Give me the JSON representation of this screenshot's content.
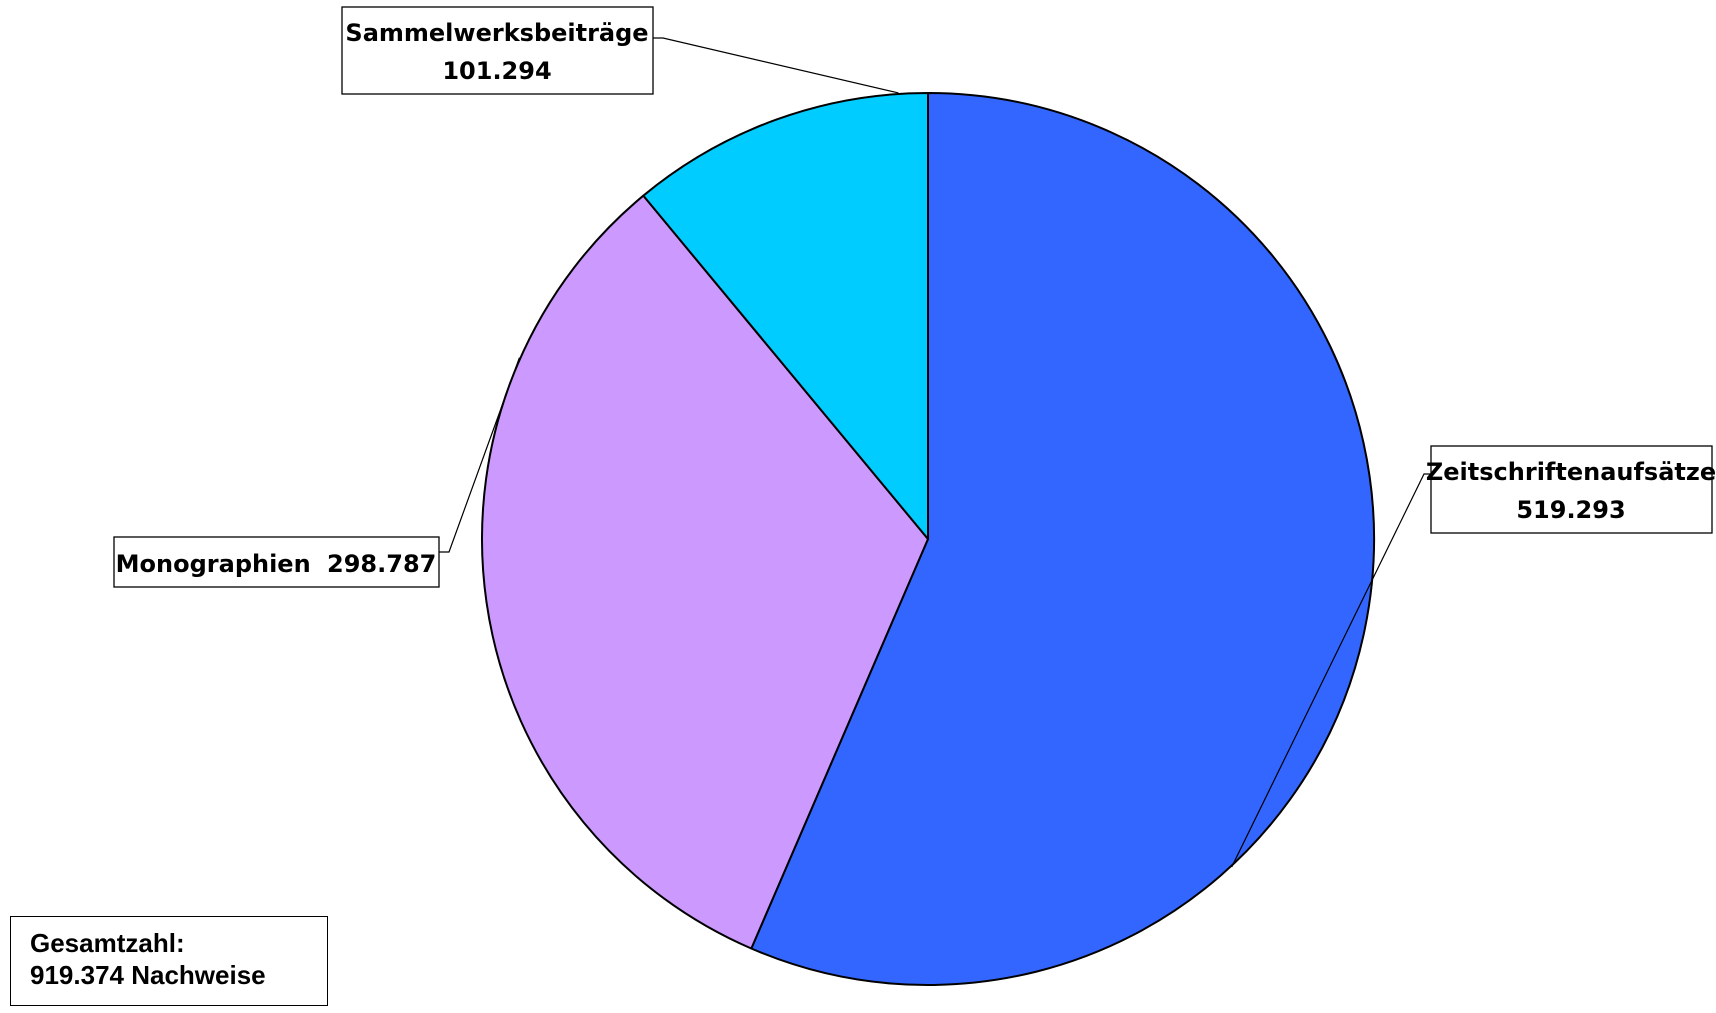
{
  "chart_data": {
    "type": "pie",
    "colors": {
      "Zeitschriftenaufsätze": "#3366FF",
      "Monographien": "#CC99FF",
      "Sammelwerksbeiträge": "#00CCFF"
    },
    "slices": [
      {
        "label": "Zeitschriftenaufsätze",
        "value": 519293,
        "value_text": "519.293",
        "color": "#3366FF"
      },
      {
        "label": "Monographien",
        "value": 298787,
        "value_text": "298.787",
        "color": "#CC99FF"
      },
      {
        "label": "Sammelwerksbeiträge",
        "value": 101294,
        "value_text": "101.294",
        "color": "#00CCFF"
      }
    ],
    "start_angle_deg": 0,
    "direction": "clockwise",
    "legend": "none",
    "data_labels": true
  },
  "annotation": {
    "line1": "Gesamtzahl:",
    "line2": "919.374 Nachweise"
  }
}
